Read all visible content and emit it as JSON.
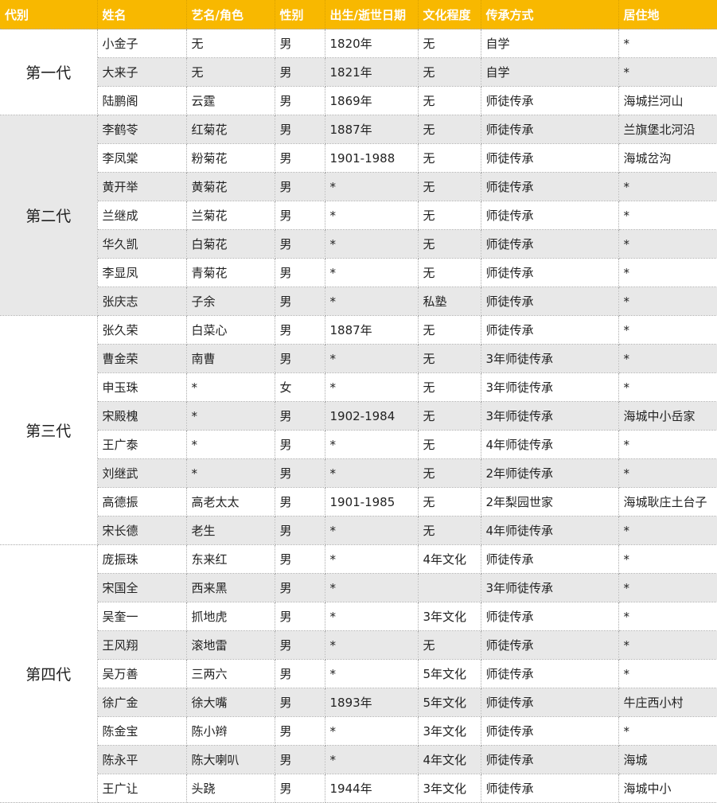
{
  "header": [
    "代别",
    "姓名",
    "艺名/角色",
    "性别",
    "出生/逝世日期",
    "文化程度",
    "传承方式",
    "居住地"
  ],
  "colors": {
    "header_bg": "#f8b800",
    "header_text": "#ffffff",
    "stripe": "#e8e8e8"
  },
  "groups": [
    {
      "label": "第一代",
      "rows": [
        [
          "小金子",
          "无",
          "男",
          "1820年",
          "无",
          "自学",
          "*"
        ],
        [
          "大来子",
          "无",
          "男",
          "1821年",
          "无",
          "自学",
          "*"
        ],
        [
          "陆鹏阁",
          "云霆",
          "男",
          "1869年",
          "无",
          "师徒传承",
          "海城拦河山"
        ]
      ]
    },
    {
      "label": "第二代",
      "rows": [
        [
          "李鹤苓",
          "红菊花",
          "男",
          "1887年",
          "无",
          "师徒传承",
          "兰旗堡北河沿"
        ],
        [
          "李凤棠",
          "粉菊花",
          "男",
          "1901-1988",
          "无",
          "师徒传承",
          "海城岔沟"
        ],
        [
          "黄开举",
          "黄菊花",
          "男",
          "*",
          "无",
          "师徒传承",
          "*"
        ],
        [
          "兰继成",
          "兰菊花",
          "男",
          "*",
          "无",
          "师徒传承",
          "*"
        ],
        [
          "华久凯",
          "白菊花",
          "男",
          "*",
          "无",
          "师徒传承",
          "*"
        ],
        [
          "李显凤",
          "青菊花",
          "男",
          "*",
          "无",
          "师徒传承",
          "*"
        ],
        [
          "张庆志",
          "子余",
          "男",
          "*",
          "私塾",
          "师徒传承",
          "*"
        ]
      ]
    },
    {
      "label": "第三代",
      "rows": [
        [
          "张久荣",
          "白菜心",
          "男",
          "1887年",
          "无",
          "师徒传承",
          "*"
        ],
        [
          "曹金荣",
          "南曹",
          "男",
          "*",
          "无",
          "3年师徒传承",
          "*"
        ],
        [
          "申玉珠",
          "*",
          "女",
          "*",
          "无",
          "3年师徒传承",
          "*"
        ],
        [
          "宋殿槐",
          "*",
          "男",
          "1902-1984",
          "无",
          "3年师徒传承",
          "海城中小岳家"
        ],
        [
          "王广泰",
          "*",
          "男",
          "*",
          "无",
          "4年师徒传承",
          "*"
        ],
        [
          "刘继武",
          "*",
          "男",
          "*",
          "无",
          "2年师徒传承",
          "*"
        ],
        [
          "高德振",
          "高老太太",
          "男",
          "1901-1985",
          "无",
          "2年梨园世家",
          "海城耿庄土台子"
        ],
        [
          "宋长德",
          "老生",
          "男",
          "*",
          "无",
          "4年师徒传承",
          "*"
        ]
      ]
    },
    {
      "label": "第四代",
      "rows": [
        [
          "庞振珠",
          "东来红",
          "男",
          "*",
          "4年文化",
          "师徒传承",
          "*"
        ],
        [
          "宋国全",
          "西来黑",
          "男",
          "*",
          "",
          "3年师徒传承",
          "*"
        ],
        [
          "吴奎一",
          "抓地虎",
          "男",
          "*",
          "3年文化",
          "师徒传承",
          "*"
        ],
        [
          "王风翔",
          "滚地雷",
          "男",
          "*",
          "无",
          "师徒传承",
          "*"
        ],
        [
          "吴万善",
          "三两六",
          "男",
          "*",
          "5年文化",
          "师徒传承",
          "*"
        ],
        [
          "徐广金",
          "徐大嘴",
          "男",
          "1893年",
          "5年文化",
          "师徒传承",
          "牛庄西小村"
        ],
        [
          "陈金宝",
          "陈小辫",
          "男",
          "*",
          "3年文化",
          "师徒传承",
          "*"
        ],
        [
          "陈永平",
          "陈大喇叭",
          "男",
          "*",
          "4年文化",
          "师徒传承",
          "海城"
        ],
        [
          "王广让",
          "头跷",
          "男",
          "1944年",
          "3年文化",
          "师徒传承",
          "海城中小"
        ]
      ]
    }
  ]
}
